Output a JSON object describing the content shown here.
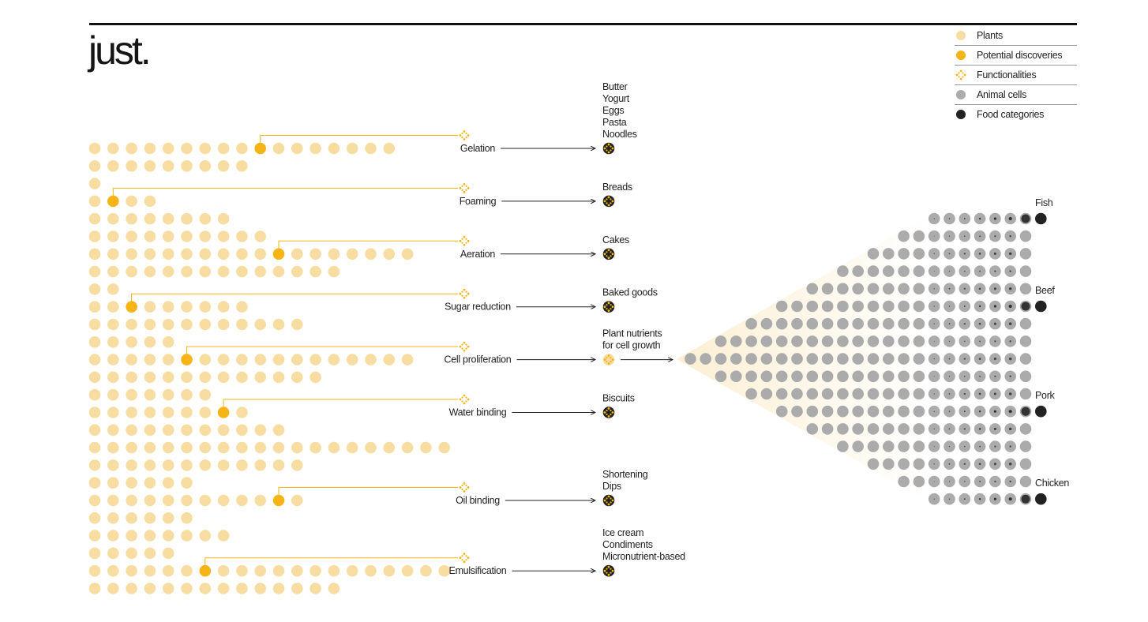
{
  "brand": {
    "logo": "just."
  },
  "colors": {
    "plant": "#F8DDA2",
    "discovery": "#F6B416",
    "functionality": "#F6B416",
    "animal": "#ABABAB",
    "food": "#222222",
    "cone": "#FBEBCD"
  },
  "legend": [
    {
      "label": "Plants",
      "type": "plant"
    },
    {
      "label": "Potential discoveries",
      "type": "discovery"
    },
    {
      "label": "Functionalities",
      "type": "functionality"
    },
    {
      "label": "Animal cells",
      "type": "animal"
    },
    {
      "label": "Food categories",
      "type": "food"
    }
  ],
  "plant_rows": [
    {
      "count": 17,
      "discovery": 9
    },
    {
      "count": 9
    },
    {
      "count": 1
    },
    {
      "count": 4,
      "discovery": 1
    },
    {
      "count": 8
    },
    {
      "count": 10
    },
    {
      "count": 18,
      "discovery": 10
    },
    {
      "count": 14
    },
    {
      "count": 2
    },
    {
      "count": 9,
      "discovery": 2
    },
    {
      "count": 12
    },
    {
      "count": 5
    },
    {
      "count": 18,
      "discovery": 5
    },
    {
      "count": 13
    },
    {
      "count": 7
    },
    {
      "count": 9,
      "discovery": 7
    },
    {
      "count": 11
    },
    {
      "count": 20
    },
    {
      "count": 12
    },
    {
      "count": 6
    },
    {
      "count": 12,
      "discovery": 10
    },
    {
      "count": 6
    },
    {
      "count": 8
    },
    {
      "count": 5
    },
    {
      "count": 20,
      "discovery": 6
    },
    {
      "count": 14
    }
  ],
  "functionalities": [
    {
      "name": "Gelation",
      "source_row": 0,
      "foods": [
        "Butter",
        "Yogurt",
        "Eggs",
        "Pasta",
        "Noodles"
      ]
    },
    {
      "name": "Foaming",
      "source_row": 3,
      "foods": [
        "Breads"
      ]
    },
    {
      "name": "Aeration",
      "source_row": 6,
      "foods": [
        "Cakes"
      ]
    },
    {
      "name": "Sugar reduction",
      "source_row": 9,
      "foods": [
        "Baked goods"
      ]
    },
    {
      "name": "Cell proliferation",
      "source_row": 12,
      "foods": [
        "Plant nutrients",
        "for cell growth"
      ],
      "nutrient": true
    },
    {
      "name": "Water binding",
      "source_row": 15,
      "foods": [
        "Biscuits"
      ]
    },
    {
      "name": "Oil binding",
      "source_row": 20,
      "foods": [
        "Shortening",
        "Dips"
      ]
    },
    {
      "name": "Emulsification",
      "source_row": 24,
      "foods": [
        "Ice cream",
        "Condiments",
        "Micronutrient-based"
      ]
    }
  ],
  "animal_rows": [
    {
      "count": 7,
      "food": true
    },
    {
      "count": 9
    },
    {
      "count": 11
    },
    {
      "count": 13
    },
    {
      "count": 15
    },
    {
      "count": 17,
      "food": true
    },
    {
      "count": 19
    },
    {
      "count": 21
    },
    {
      "count": 23
    },
    {
      "count": 21
    },
    {
      "count": 19
    },
    {
      "count": 17,
      "food": true
    },
    {
      "count": 15
    },
    {
      "count": 13
    },
    {
      "count": 11
    },
    {
      "count": 9
    },
    {
      "count": 7,
      "food": true
    }
  ],
  "meats": [
    {
      "label": "Fish",
      "row": 0
    },
    {
      "label": "Beef",
      "row": 5
    },
    {
      "label": "Pork",
      "row": 11
    },
    {
      "label": "Chicken",
      "row": 16
    }
  ]
}
